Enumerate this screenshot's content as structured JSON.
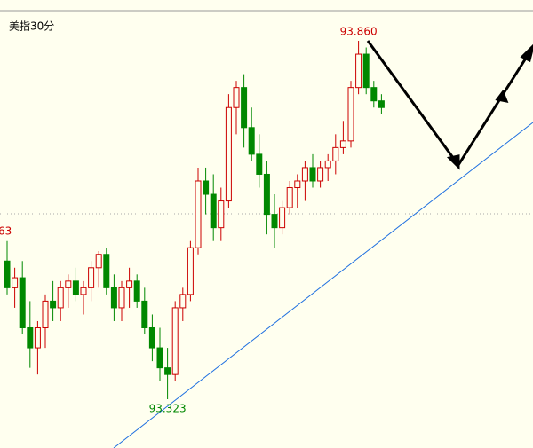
{
  "chart_data": {
    "type": "candlestick",
    "title": "美指30分",
    "up_color": "#cc0000",
    "down_color": "#008800",
    "series": [
      {
        "open": [
          93.53,
          93.49,
          93.505,
          93.43,
          93.4,
          93.43,
          93.47,
          93.46,
          93.49,
          93.5,
          93.48,
          93.49,
          93.52,
          93.54,
          93.49,
          93.46,
          93.49,
          93.5,
          93.47,
          93.43,
          93.4,
          93.37,
          93.36,
          93.46,
          93.48,
          93.55,
          93.65,
          93.63,
          93.58,
          93.62,
          93.76,
          93.79,
          93.73,
          93.69,
          93.66,
          93.6,
          93.58,
          93.61,
          93.64,
          93.65,
          93.67,
          93.65,
          93.67,
          93.68,
          93.7,
          93.71,
          93.79,
          93.84,
          93.79,
          93.77
        ],
        "high": [
          93.56,
          93.52,
          93.53,
          93.47,
          93.44,
          93.48,
          93.5,
          93.5,
          93.51,
          93.52,
          93.5,
          93.53,
          93.545,
          93.55,
          93.51,
          93.5,
          93.52,
          93.51,
          93.49,
          93.45,
          93.43,
          93.4,
          93.47,
          93.49,
          93.56,
          93.67,
          93.67,
          93.66,
          93.64,
          93.78,
          93.8,
          93.81,
          93.76,
          93.72,
          93.68,
          93.63,
          93.62,
          93.65,
          93.66,
          93.68,
          93.69,
          93.68,
          93.69,
          93.72,
          93.74,
          93.8,
          93.86,
          93.85,
          93.8,
          93.78
        ],
        "low": [
          93.48,
          93.46,
          93.42,
          93.37,
          93.36,
          93.4,
          93.44,
          93.44,
          93.46,
          93.47,
          93.45,
          93.47,
          93.49,
          93.48,
          93.44,
          93.44,
          93.46,
          93.46,
          93.42,
          93.38,
          93.35,
          93.323,
          93.35,
          93.44,
          93.47,
          93.54,
          93.6,
          93.56,
          93.56,
          93.61,
          93.72,
          93.7,
          93.68,
          93.64,
          93.57,
          93.55,
          93.57,
          93.6,
          93.61,
          93.62,
          93.64,
          93.64,
          93.65,
          93.66,
          93.69,
          93.7,
          93.78,
          93.78,
          93.76,
          93.75
        ],
        "close": [
          93.49,
          93.505,
          93.43,
          93.4,
          93.43,
          93.47,
          93.46,
          93.49,
          93.5,
          93.48,
          93.49,
          93.52,
          93.54,
          93.49,
          93.46,
          93.49,
          93.5,
          93.47,
          93.43,
          93.4,
          93.37,
          93.36,
          93.46,
          93.48,
          93.55,
          93.65,
          93.63,
          93.58,
          93.62,
          93.76,
          93.79,
          93.73,
          93.69,
          93.66,
          93.6,
          93.58,
          93.61,
          93.64,
          93.65,
          93.67,
          93.65,
          93.67,
          93.68,
          93.7,
          93.71,
          93.79,
          93.84,
          93.79,
          93.77,
          93.76
        ]
      }
    ],
    "high_label": {
      "value": 93.86,
      "label": "93.860",
      "color": "#cc0000"
    },
    "low_label": {
      "value": 93.323,
      "label": "93.323",
      "color": "#008800"
    },
    "annotation": "63"
  }
}
